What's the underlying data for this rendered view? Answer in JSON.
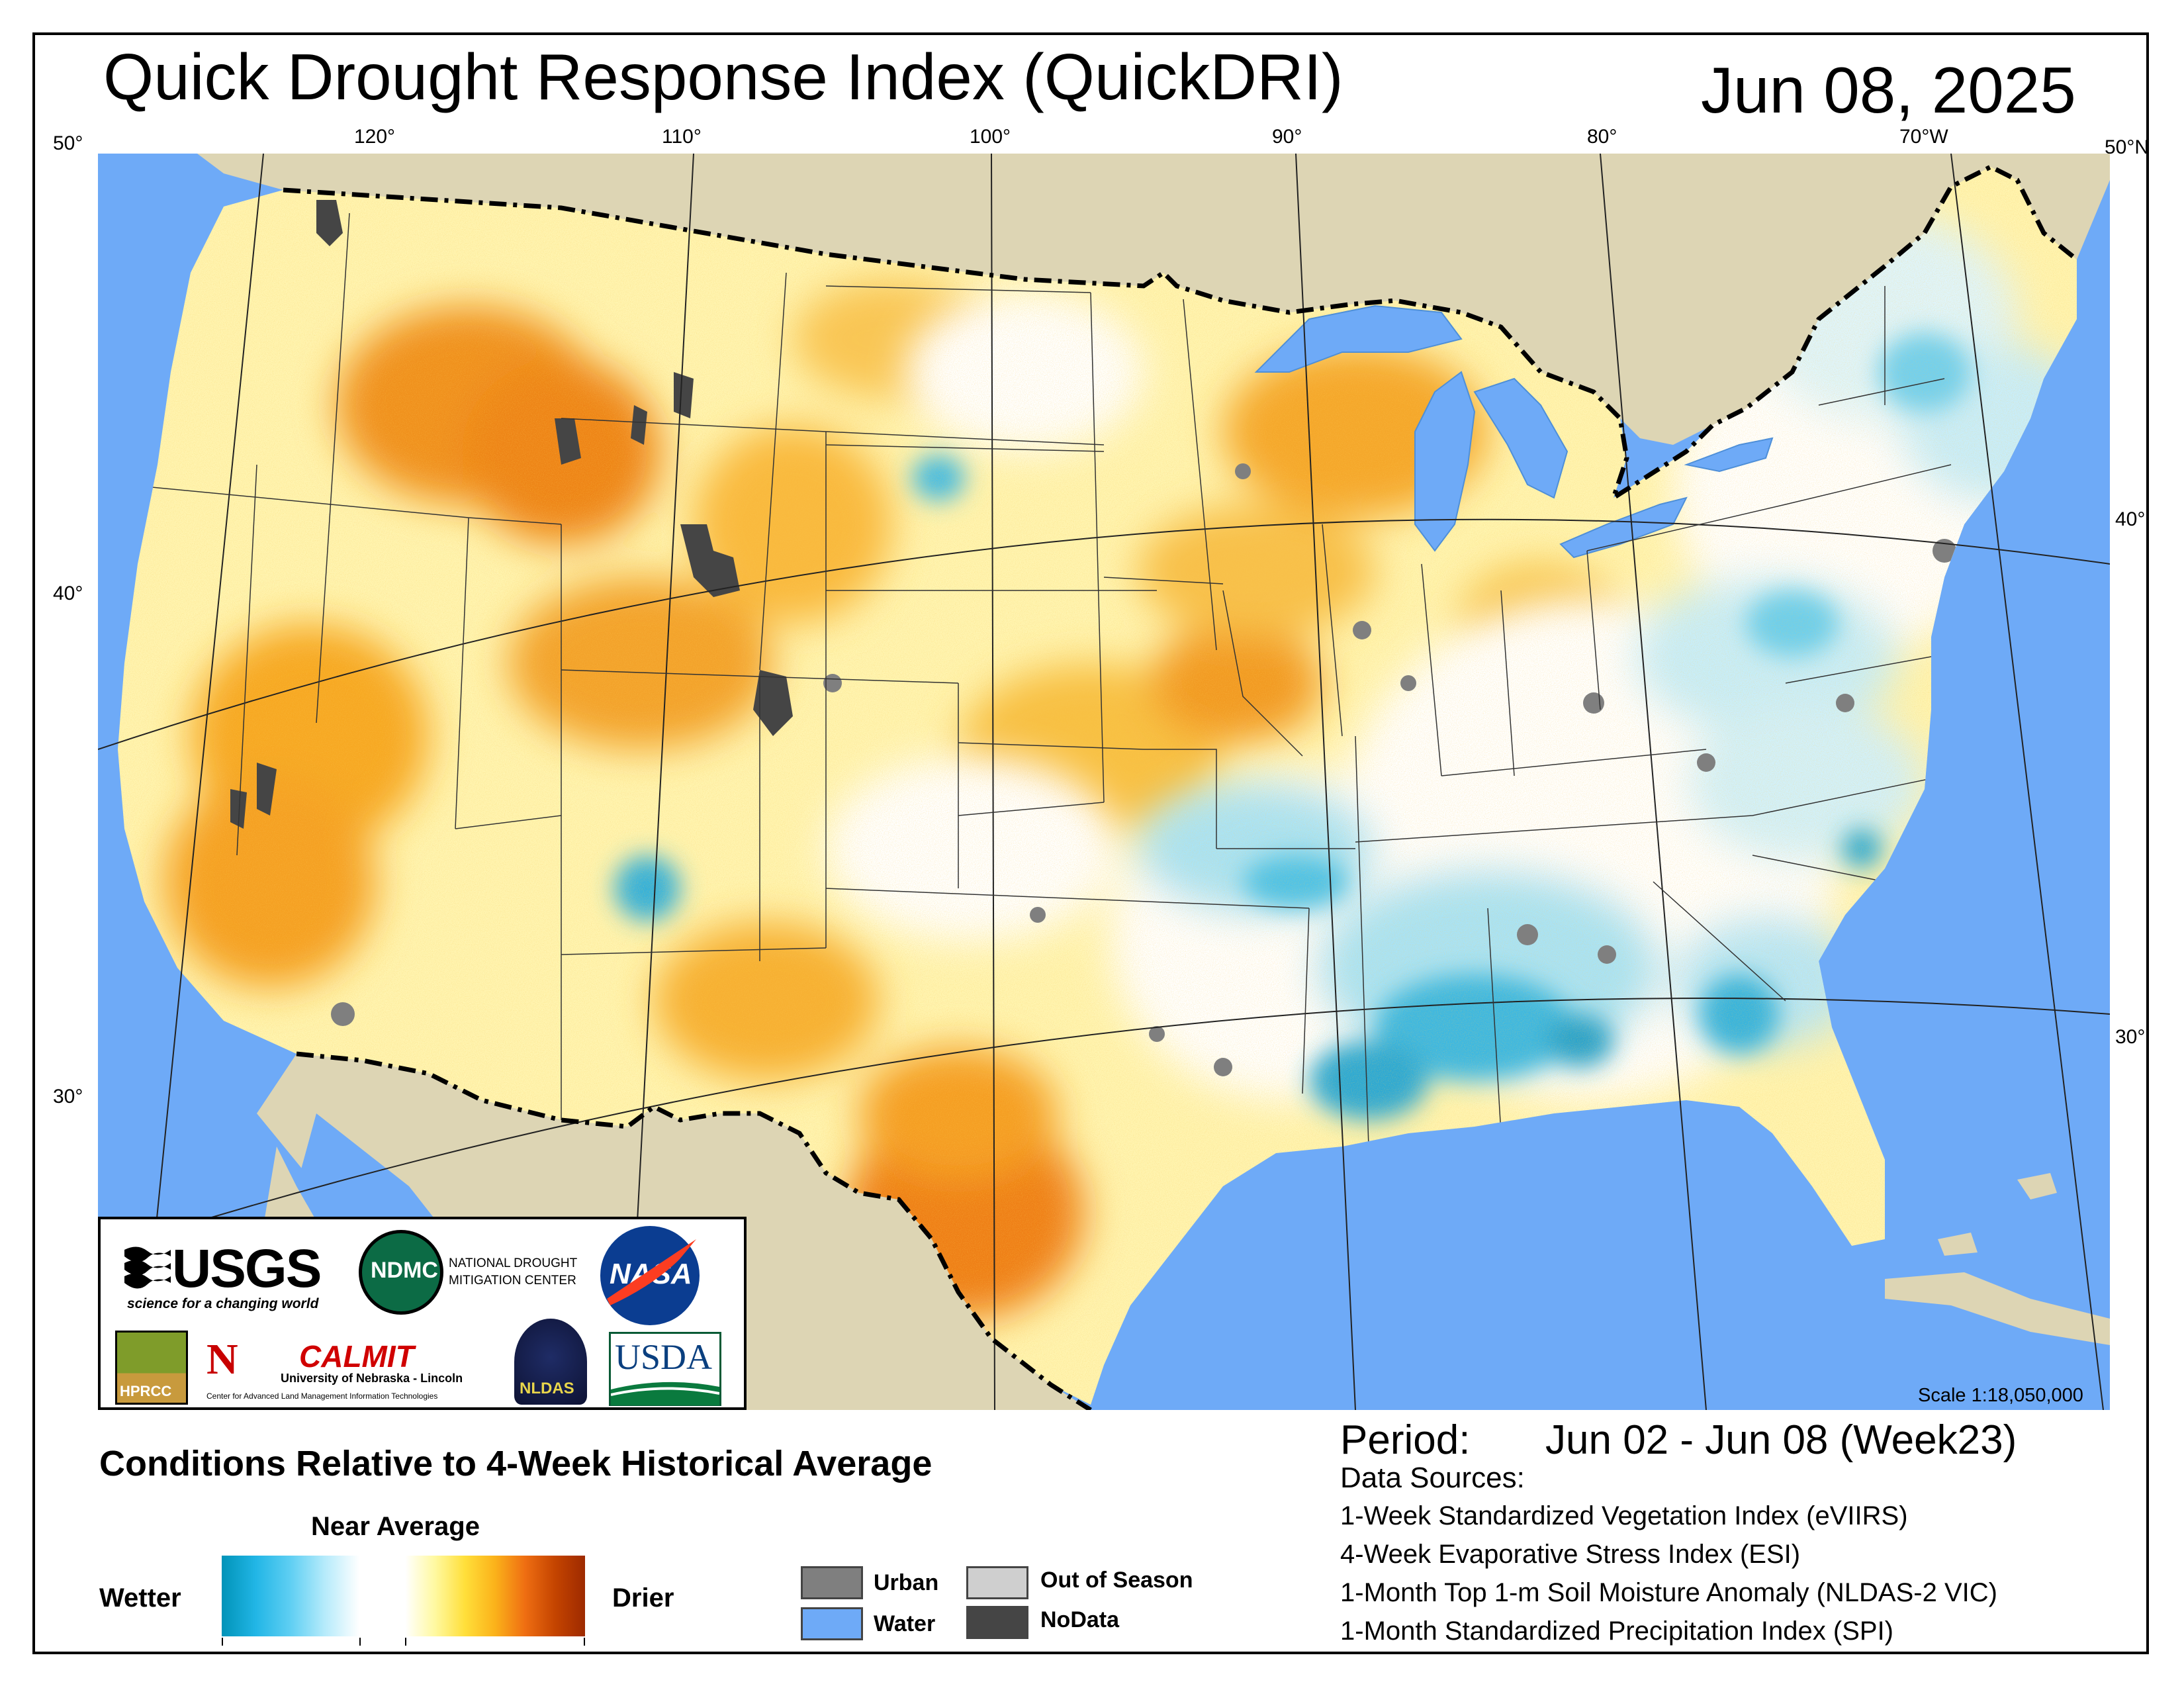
{
  "title": "Quick Drought Response Index (QuickDRI)",
  "date": "Jun 08, 2025",
  "graticule": {
    "top": [
      "50°",
      "120°",
      "110°",
      "100°",
      "90°",
      "80°",
      "70°W",
      "50°N"
    ],
    "left": [
      "40°",
      "30°"
    ],
    "right": [
      "40°",
      "30°"
    ]
  },
  "logos": {
    "usgs": "USGS",
    "usgs_tagline": "science for a changing world",
    "ndmc": "NDMC",
    "ndmc_name_1": "NATIONAL DROUGHT",
    "ndmc_name_2": "MITIGATION CENTER",
    "nasa": "NASA",
    "hprcc": "HPRCC",
    "calmit": "CALMIT",
    "calmit_sub": "University of Nebraska - Lincoln",
    "calmit_sub2": "Center for Advanced Land Management Information Technologies",
    "nldas": "NLDAS",
    "usda": "USDA"
  },
  "scale": "Scale 1:18,050,000",
  "legend": {
    "heading": "Conditions Relative to 4-Week Historical Average",
    "near_average": "Near Average",
    "wetter": "Wetter",
    "drier": "Drier",
    "swatches": [
      {
        "label": "Urban",
        "color": "#7f7f7f"
      },
      {
        "label": "Water",
        "color": "#6eaaf7"
      },
      {
        "label": "Out of Season",
        "color": "#cfcfcf"
      },
      {
        "label": "NoData",
        "color": "#454545"
      }
    ]
  },
  "period": {
    "label": "Period:",
    "value": "Jun 02 - Jun 08 (Week23)"
  },
  "data_sources": {
    "label": "Data Sources:",
    "items": [
      "1-Week Standardized Vegetation Index (eVIIRS)",
      "4-Week Evaporative Stress Index (ESI)",
      "1-Month Top 1-m Soil Moisture Anomaly (NLDAS-2 VIC)",
      "1-Month Standardized Precipitation Index (SPI)"
    ]
  },
  "colors": {
    "ocean": "#6eaaf7",
    "land_outside": "#ddd5b4",
    "wet_strong": "#0093b8",
    "dry_strong": "#9e2a00"
  }
}
